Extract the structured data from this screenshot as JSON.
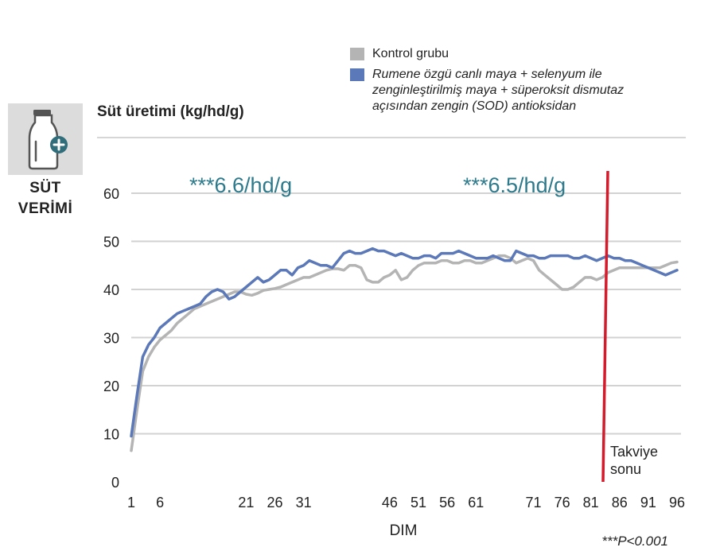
{
  "icon": {
    "name": "milk-bottle-plus-icon",
    "label_line1": "SÜT",
    "label_line2": "VERİMİ"
  },
  "legend": {
    "control": "Kontrol grubu",
    "treatment_lines": [
      "Rumene özgü canlı maya + selenyum ile",
      "zenginleştirilmiş maya +  süperoksit dismutaz",
      "açısından zengin (SOD) antioksidan"
    ]
  },
  "colors": {
    "control": "#b4b4b4",
    "treatment": "#5b78b8",
    "marker": "#d41b2c",
    "annotation": "#2c7a8c",
    "grid": "#d2d2d2"
  },
  "chart_data": {
    "type": "line",
    "title": "Süt üretimi (kg/hd/g)",
    "xlabel": "DIM",
    "ylabel": "",
    "xlim": [
      0,
      96
    ],
    "ylim": [
      0,
      60
    ],
    "yticks": [
      0,
      10,
      20,
      30,
      40,
      50,
      60
    ],
    "xticks": [
      1,
      6,
      21,
      26,
      31,
      46,
      51,
      56,
      61,
      71,
      76,
      81,
      86,
      91,
      96
    ],
    "x": [
      1,
      2,
      3,
      4,
      5,
      6,
      7,
      8,
      9,
      10,
      11,
      12,
      13,
      14,
      15,
      16,
      17,
      18,
      19,
      20,
      21,
      22,
      23,
      24,
      25,
      26,
      27,
      28,
      29,
      30,
      31,
      32,
      33,
      34,
      35,
      36,
      37,
      38,
      39,
      40,
      41,
      42,
      43,
      44,
      45,
      46,
      47,
      48,
      49,
      50,
      51,
      52,
      53,
      54,
      55,
      56,
      57,
      58,
      59,
      60,
      61,
      62,
      63,
      64,
      65,
      66,
      67,
      68,
      69,
      70,
      71,
      72,
      73,
      74,
      75,
      76,
      77,
      78,
      79,
      80,
      81,
      82,
      83,
      84,
      85,
      86,
      87,
      88,
      89,
      90,
      91,
      92,
      93,
      94,
      95,
      96
    ],
    "series": [
      {
        "name": "Kontrol grubu",
        "values": [
          6.5,
          15,
          23,
          26,
          28,
          29.5,
          30.5,
          31.5,
          33,
          34,
          35,
          36,
          36.5,
          37,
          37.5,
          38,
          38.5,
          39,
          39.5,
          39.5,
          39,
          38.8,
          39.2,
          39.8,
          40,
          40.2,
          40.5,
          41,
          41.5,
          42,
          42.5,
          42.5,
          43,
          43.5,
          44,
          44.3,
          44.3,
          44,
          45,
          45,
          44.5,
          42,
          41.5,
          41.5,
          42.5,
          43,
          44,
          42,
          42.5,
          44,
          45,
          45.5,
          45.5,
          45.5,
          46,
          46,
          45.5,
          45.5,
          46,
          46,
          45.5,
          45.5,
          46,
          46.5,
          47,
          47,
          46.5,
          45.5,
          46,
          46.5,
          46,
          44,
          43,
          42,
          41,
          40,
          40,
          40.5,
          41.5,
          42.5,
          42.5,
          42,
          42.5,
          43.5,
          44,
          44.5,
          44.5,
          44.5,
          44.5,
          44.5,
          44.5,
          44.5,
          44.5,
          45,
          45.5,
          45.7
        ]
      },
      {
        "name": "Rumene özgü canlı maya + selenyum ile zenginleştirilmiş maya + süperoksit dismutaz açısından zengin (SOD) antioksidan",
        "values": [
          9.5,
          18,
          26,
          28.5,
          30,
          32,
          33,
          34,
          35,
          35.5,
          36,
          36.5,
          37,
          38.5,
          39.5,
          40,
          39.5,
          38,
          38.5,
          39.5,
          40.5,
          41.5,
          42.5,
          41.5,
          42,
          43,
          44,
          44,
          43,
          44.5,
          45,
          46,
          45.5,
          45,
          45,
          44.5,
          46,
          47.5,
          48,
          47.5,
          47.5,
          48,
          48.5,
          48,
          48,
          47.5,
          47,
          47.5,
          47,
          46.5,
          46.5,
          47,
          47,
          46.5,
          47.5,
          47.5,
          47.5,
          48,
          47.5,
          47,
          46.5,
          46.5,
          46.5,
          47,
          46.5,
          46,
          46,
          48,
          47.5,
          47,
          47,
          46.5,
          46.5,
          47,
          47,
          47,
          47,
          46.5,
          46.5,
          47,
          46.5,
          46,
          46.5,
          47,
          46.5,
          46.5,
          46,
          46,
          45.5,
          45,
          44.5,
          44,
          43.5,
          43,
          43.5,
          44
        ]
      }
    ],
    "annotations": [
      {
        "text": "***6.6/hd/g",
        "x": 21
      },
      {
        "text": "***6.5/hd/g",
        "x": 71
      }
    ],
    "marker": {
      "x": 86,
      "label_line1": "Takviye",
      "label_line2": "sonu"
    },
    "footnote": "***P<0.001"
  }
}
